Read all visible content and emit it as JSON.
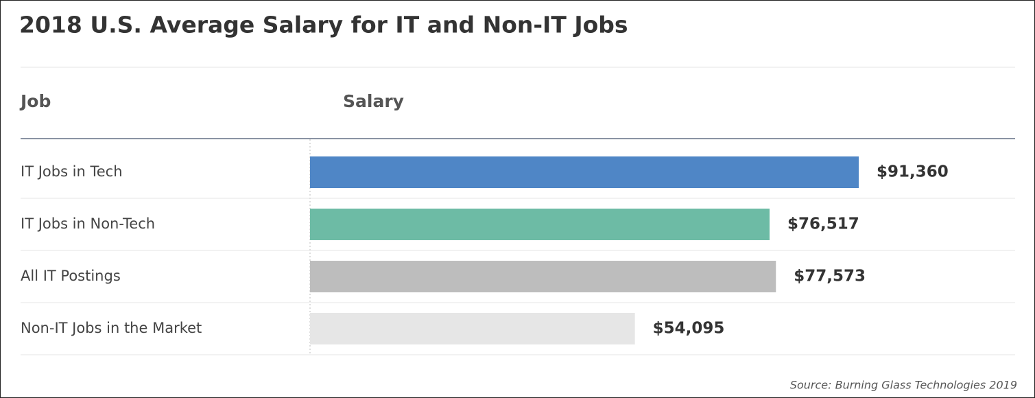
{
  "chart_data": {
    "type": "bar",
    "orientation": "horizontal",
    "title": "2018 U.S. Average Salary for IT and Non-IT Jobs",
    "column_headers": [
      "Job",
      "Salary"
    ],
    "categories": [
      "IT Jobs in Tech",
      "IT Jobs in Non-Tech",
      "All IT Postings",
      "Non-IT Jobs in the Market"
    ],
    "values": [
      91360,
      76517,
      77573,
      54095
    ],
    "value_labels": [
      "$91,360",
      "$76,517",
      "$77,573",
      "$54,095"
    ],
    "colors": [
      "#4f86c6",
      "#6dbba5",
      "#bdbdbd",
      "#e6e6e6"
    ],
    "source": "Source: Burning Glass Technologies 2019"
  }
}
